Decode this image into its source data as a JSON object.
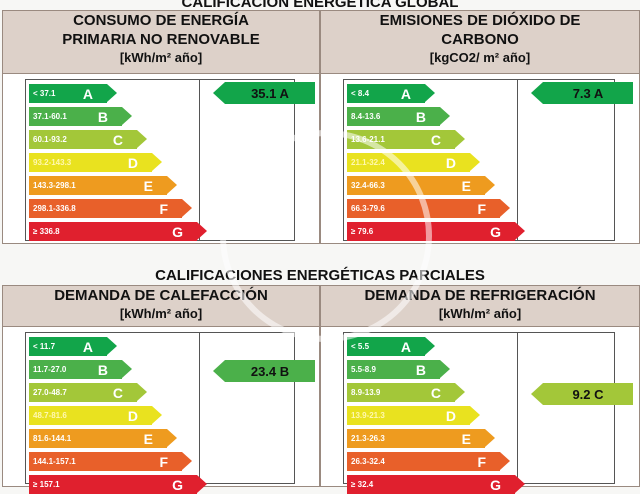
{
  "global_title": "CALIFICACIÓN ENERGÉTICA GLOBAL",
  "partial_title": "CALIFICACIONES ENERGÉTICAS PARCIALES",
  "colors": {
    "A": "#12a54a",
    "B": "#4bb04a",
    "C": "#a3c739",
    "D": "#e9e21f",
    "E": "#ee9b1f",
    "F": "#e8602a",
    "G": "#e0202e"
  },
  "panels": [
    {
      "title_line1": "CONSUMO DE ENERGÍA",
      "title_line2": "PRIMARIA NO RENOVABLE",
      "unit": "[kWh/m² año]",
      "ranges": [
        "< 37.1",
        "37.1-60.1",
        "60.1-93.2",
        "93.2-143.3",
        "143.3-298.1",
        "298.1-336.8",
        "≥ 336.8"
      ],
      "result_label": "35.1 A",
      "result_class": "A"
    },
    {
      "title_line1": "EMISIONES DE DIÓXIDO DE",
      "title_line2": "CARBONO",
      "unit": "[kgCO2/ m² año]",
      "ranges": [
        "< 8.4",
        "8.4-13.6",
        "13.6-21.1",
        "21.1-32.4",
        "32.4-66.3",
        "66.3-79.6",
        "≥ 79.6"
      ],
      "result_label": "7.3 A",
      "result_class": "A"
    },
    {
      "title_line1": "DEMANDA DE CALEFACCIÓN",
      "title_line2": "",
      "unit": "[kWh/m² año]",
      "ranges": [
        "< 11.7",
        "11.7-27.0",
        "27.0-48.7",
        "48.7-81.6",
        "81.6-144.1",
        "144.1-157.1",
        "≥ 157.1"
      ],
      "result_label": "23.4 B",
      "result_class": "B"
    },
    {
      "title_line1": "DEMANDA DE REFRIGERACIÓN",
      "title_line2": "",
      "unit": "[kWh/m² año]",
      "ranges": [
        "< 5.5",
        "5.5-8.9",
        "8.9-13.9",
        "13.9-21.3",
        "21.3-26.3",
        "26.3-32.4",
        "≥ 32.4"
      ],
      "result_label": "9.2 C",
      "result_class": "C"
    }
  ],
  "letters": [
    "A",
    "B",
    "C",
    "D",
    "E",
    "F",
    "G"
  ]
}
